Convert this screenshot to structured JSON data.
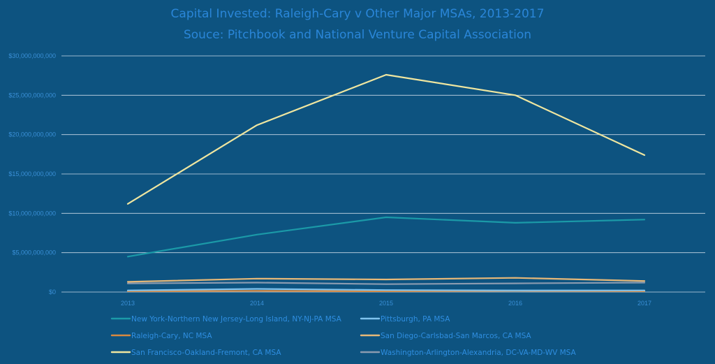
{
  "chart_data": {
    "type": "line",
    "title": "Capital Invested: Raleigh-Cary v Other Major MSAs, 2013-2017",
    "subtitle": "Souce: Pitchbook and National Venture Capital Association",
    "xlabel": "",
    "ylabel": "",
    "categories": [
      "2013",
      "2014",
      "2015",
      "2016",
      "2017"
    ],
    "ylim": [
      0,
      30000000000
    ],
    "yticks": [
      0,
      5000000000,
      10000000000,
      15000000000,
      20000000000,
      25000000000,
      30000000000
    ],
    "ytick_labels": [
      "$0",
      "$5,000,000,000",
      "$10,000,000,000",
      "$15,000,000,000",
      "$20,000,000,000",
      "$25,000,000,000",
      "$30,000,000,000"
    ],
    "grid": true,
    "legend_position": "bottom",
    "series": [
      {
        "name": "New York-Northern New Jersey-Long Island, NY-NJ-PA MSA",
        "color": "#1b9aa8",
        "values": [
          4500000000,
          7300000000,
          9500000000,
          8800000000,
          9200000000
        ]
      },
      {
        "name": "Pittsburgh, PA MSA",
        "color": "#7fc3ee",
        "values": [
          200000000,
          400000000,
          250000000,
          200000000,
          200000000
        ]
      },
      {
        "name": "Raleigh-Cary, NC MSA",
        "color": "#d9893f",
        "values": [
          100000000,
          150000000,
          100000000,
          150000000,
          100000000
        ]
      },
      {
        "name": "San Diego-Carlsbad-San Marcos, CA MSA",
        "color": "#e6b878",
        "values": [
          1300000000,
          1700000000,
          1600000000,
          1800000000,
          1400000000
        ]
      },
      {
        "name": "San Francisco-Oakland-Fremont, CA MSA",
        "color": "#efe6a0",
        "values": [
          11200000000,
          21200000000,
          27600000000,
          25000000000,
          17400000000
        ]
      },
      {
        "name": "Washington-Arlington-Alexandria, DC-VA-MD-WV MSA",
        "color": "#8a9bb0",
        "values": [
          1100000000,
          1200000000,
          1000000000,
          1100000000,
          1200000000
        ]
      }
    ]
  }
}
